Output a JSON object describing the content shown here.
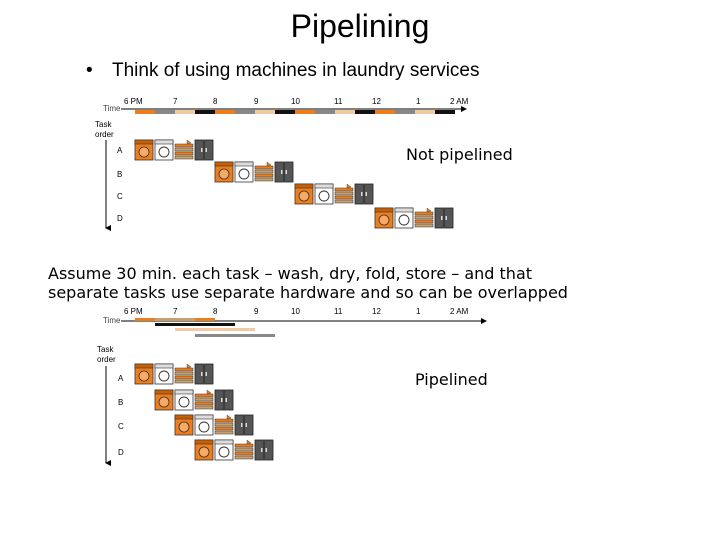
{
  "title": "Pipelining",
  "bullet": "Think of using machines in laundry services",
  "notes": {
    "not_pipelined": "Not pipelined",
    "pipelined": "Pipelined",
    "assume_line1": "Assume 30 min. each task – wash, dry, fold, store – and  that",
    "assume_line2": "separate tasks use separate hardware and so can be overlapped"
  },
  "timeline": {
    "time_label": "Time",
    "task_order_line1": "Task",
    "task_order_line2": "order",
    "hours": [
      "6 PM",
      "7",
      "8",
      "9",
      "10",
      "11",
      "12",
      "1",
      "2 AM"
    ]
  },
  "tasks": [
    "A",
    "B",
    "C",
    "D"
  ],
  "colors": {
    "wash": "#ee7d1c",
    "dry": "#ffffff",
    "fold": "#c8a070",
    "store": "#555555",
    "bar_dark": "#111111",
    "bar_gray": "#888888",
    "bar_light": "#f3c9a3"
  },
  "icons": [
    "washer-icon",
    "dryer-icon",
    "folder-icon",
    "storage-icon"
  ]
}
